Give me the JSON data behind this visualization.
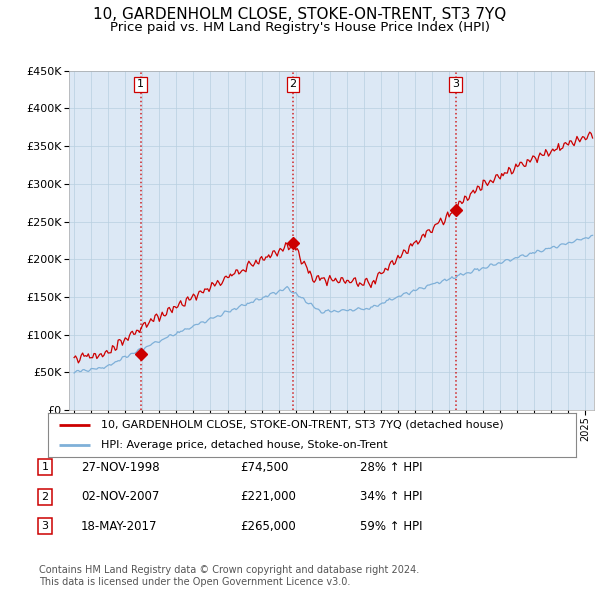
{
  "title": "10, GARDENHOLM CLOSE, STOKE-ON-TRENT, ST3 7YQ",
  "subtitle": "Price paid vs. HM Land Registry's House Price Index (HPI)",
  "title_fontsize": 11,
  "subtitle_fontsize": 9.5,
  "sale_color": "#cc0000",
  "hpi_color": "#7fb0d8",
  "background_color": "#ffffff",
  "plot_bg_color": "#dce8f5",
  "grid_color": "#b8cfe0",
  "sales": [
    {
      "date_year": 1998.91,
      "price": 74500,
      "label": "1"
    },
    {
      "date_year": 2007.84,
      "price": 221000,
      "label": "2"
    },
    {
      "date_year": 2017.38,
      "price": 265000,
      "label": "3"
    }
  ],
  "legend_line1": "10, GARDENHOLM CLOSE, STOKE-ON-TRENT, ST3 7YQ (detached house)",
  "legend_line2": "HPI: Average price, detached house, Stoke-on-Trent",
  "table_rows": [
    {
      "num": "1",
      "date": "27-NOV-1998",
      "price": "£74,500",
      "hpi": "28% ↑ HPI"
    },
    {
      "num": "2",
      "date": "02-NOV-2007",
      "price": "£221,000",
      "hpi": "34% ↑ HPI"
    },
    {
      "num": "3",
      "date": "18-MAY-2017",
      "price": "£265,000",
      "hpi": "59% ↑ HPI"
    }
  ],
  "footnote": "Contains HM Land Registry data © Crown copyright and database right 2024.\nThis data is licensed under the Open Government Licence v3.0.",
  "vline_color": "#cc0000",
  "ylim": [
    0,
    450000
  ],
  "yticks": [
    0,
    50000,
    100000,
    150000,
    200000,
    250000,
    300000,
    350000,
    400000,
    450000
  ],
  "xmin": 1994.7,
  "xmax": 2025.5
}
